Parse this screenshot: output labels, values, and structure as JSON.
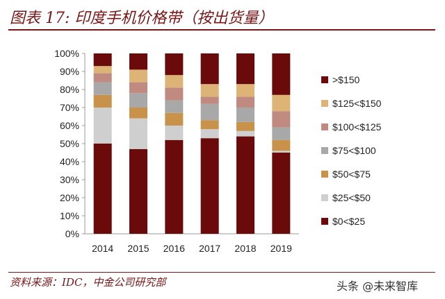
{
  "header": {
    "title": "图表 17: 印度手机价格带（按出货量）"
  },
  "footer": {
    "source": "资料来源：IDC，中金公司研究部",
    "watermark": "头条 @未来智库"
  },
  "colors": {
    "0-25": "#6a0a0a",
    "25-50": "#cfcfcf",
    "50-75": "#c8924a",
    "75-100": "#a8a8a8",
    "100-125": "#c08a80",
    "125-150": "#ddb476",
    ">150": "#6a0a0a"
  },
  "chart_data": {
    "type": "bar",
    "stacked": true,
    "title": "印度手机价格带（按出货量）",
    "xlabel": "",
    "ylabel": "",
    "ylim": [
      0,
      100
    ],
    "yticks": [
      "0%",
      "10%",
      "20%",
      "30%",
      "40%",
      "50%",
      "60%",
      "70%",
      "80%",
      "90%",
      "100%"
    ],
    "categories": [
      "2014",
      "2015",
      "2016",
      "2017",
      "2018",
      "2019"
    ],
    "series": [
      {
        "name": "$0<$25",
        "color_key": "0-25",
        "values": [
          50,
          47,
          52,
          53,
          54,
          45
        ]
      },
      {
        "name": "$25<$50",
        "color_key": "25-50",
        "values": [
          20,
          17,
          8,
          5,
          3,
          1
        ]
      },
      {
        "name": "$50<$75",
        "color_key": "50-75",
        "values": [
          7,
          6,
          7,
          5,
          5,
          6
        ]
      },
      {
        "name": "$75<$100",
        "color_key": "75-100",
        "values": [
          7,
          8,
          7,
          9,
          8,
          7
        ]
      },
      {
        "name": "$100<$125",
        "color_key": "100-125",
        "values": [
          5,
          6,
          7,
          4,
          6,
          9
        ]
      },
      {
        "name": "$125<$150",
        "color_key": "125-150",
        "values": [
          4,
          7,
          7,
          7,
          7,
          9
        ]
      },
      {
        "name": ">$150",
        "color_key": ">150",
        "values": [
          7,
          9,
          12,
          17,
          17,
          23
        ]
      }
    ],
    "legend": {
      "position": "right",
      "order": [
        ">$150",
        "$125<$150",
        "$100<$125",
        "$75<$100",
        "$50<$75",
        "$25<$50",
        "$0<$25"
      ]
    }
  }
}
